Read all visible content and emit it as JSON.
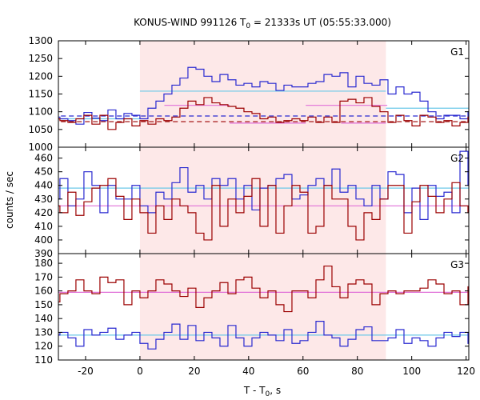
{
  "chart_data": {
    "type": "line",
    "title_main": "KONUS-WIND 991126 T",
    "title_sub": "0",
    "title_rest": " = 21333s UT (05:55:33.000)",
    "xlabel_main": "T - T",
    "xlabel_sub": "0",
    "xlabel_rest": ", s",
    "ylabel": "counts / sec",
    "xlim": [
      -30,
      121
    ],
    "x_ticks": [
      -20,
      0,
      20,
      40,
      60,
      80,
      100,
      120
    ],
    "highlight_interval": [
      0,
      90.5
    ],
    "bin_width": 2.944,
    "bin_start": -32.384,
    "colors": {
      "blue": "#2a2ad0",
      "red": "#9b0000",
      "cyan": "#6cc8e8",
      "pink": "#e070d8",
      "highlight": "#fde8e8"
    },
    "panels": [
      {
        "label": "G1",
        "ylim": [
          1000,
          1300
        ],
        "y_ticks": [
          1000,
          1050,
          1100,
          1150,
          1200,
          1250,
          1300
        ],
        "series": [
          {
            "color_key": "blue",
            "values": [
              1085,
              1080,
              1075,
              1065,
              1098,
              1082,
              1075,
              1105,
              1080,
              1095,
              1090,
              1080,
              1110,
              1130,
              1150,
              1175,
              1195,
              1225,
              1220,
              1200,
              1185,
              1205,
              1190,
              1175,
              1180,
              1170,
              1185,
              1180,
              1160,
              1175,
              1170,
              1170,
              1180,
              1185,
              1205,
              1200,
              1210,
              1170,
              1200,
              1180,
              1175,
              1190,
              1150,
              1170,
              1150,
              1155,
              1130,
              1100,
              1080,
              1090,
              1090,
              1080,
              1100,
              1110,
              1105,
              1115,
              1100,
              1100
            ]
          },
          {
            "color_key": "red",
            "values": [
              1080,
              1075,
              1070,
              1080,
              1090,
              1065,
              1090,
              1050,
              1070,
              1080,
              1060,
              1075,
              1065,
              1080,
              1075,
              1085,
              1110,
              1130,
              1120,
              1140,
              1125,
              1120,
              1115,
              1110,
              1100,
              1095,
              1080,
              1085,
              1070,
              1075,
              1080,
              1075,
              1085,
              1070,
              1085,
              1070,
              1130,
              1135,
              1125,
              1140,
              1115,
              1100,
              1070,
              1090,
              1075,
              1060,
              1090,
              1085,
              1070,
              1075,
              1060,
              1070,
              1085,
              1060,
              1050,
              1080,
              1085,
              1075
            ]
          }
        ],
        "levels": [
          {
            "color_key": "cyan",
            "dashed": false,
            "segments": [
              [
                -32,
                0,
                1080
              ],
              [
                0,
                90.5,
                1158
              ],
              [
                90.5,
                121,
                1110
              ]
            ]
          },
          {
            "color_key": "pink",
            "dashed": false,
            "segments": [
              [
                9,
                33,
                1118
              ],
              [
                33,
                61,
                1068
              ],
              [
                61,
                91,
                1118
              ],
              [
                74,
                90.5,
                1068
              ]
            ]
          },
          {
            "color_key": "blue",
            "dashed": true,
            "segments": [
              [
                -32,
                121,
                1088
              ]
            ]
          },
          {
            "color_key": "red",
            "dashed": true,
            "segments": [
              [
                -32,
                121,
                1072
              ]
            ]
          }
        ]
      },
      {
        "label": "G2",
        "ylim": [
          390,
          468
        ],
        "y_ticks": [
          390,
          400,
          410,
          420,
          430,
          440,
          450,
          460
        ],
        "series": [
          {
            "color_key": "blue",
            "values": [
              430,
              445,
              425,
              430,
              450,
              440,
              420,
              440,
              430,
              430,
              440,
              425,
              420,
              435,
              430,
              442,
              453,
              435,
              440,
              430,
              445,
              440,
              445,
              430,
              440,
              422,
              438,
              440,
              445,
              448,
              430,
              433,
              440,
              445,
              440,
              452,
              435,
              440,
              430,
              425,
              440,
              430,
              450,
              448,
              420,
              438,
              415,
              440,
              432,
              435,
              420,
              465,
              440,
              415,
              425,
              442,
              455,
              440
            ]
          },
          {
            "color_key": "red",
            "values": [
              425,
              420,
              435,
              418,
              428,
              438,
              440,
              445,
              432,
              415,
              430,
              420,
              405,
              425,
              415,
              430,
              425,
              420,
              405,
              400,
              440,
              410,
              430,
              420,
              432,
              445,
              410,
              440,
              405,
              425,
              440,
              435,
              405,
              410,
              440,
              430,
              430,
              410,
              400,
              420,
              415,
              430,
              440,
              440,
              405,
              428,
              440,
              432,
              420,
              430,
              442,
              425,
              420,
              410,
              405,
              410,
              440,
              430
            ]
          }
        ],
        "levels": [
          {
            "color_key": "cyan",
            "dashed": false,
            "segments": [
              [
                -32,
                121,
                438
              ]
            ]
          },
          {
            "color_key": "pink",
            "dashed": false,
            "segments": [
              [
                -32,
                121,
                425
              ]
            ]
          }
        ]
      },
      {
        "label": "G3",
        "ylim": [
          110,
          187
        ],
        "y_ticks": [
          110,
          120,
          130,
          140,
          150,
          160,
          170,
          180
        ],
        "series": [
          {
            "color_key": "blue",
            "values": [
              128,
              130,
              126,
              120,
              132,
              128,
              130,
              133,
              125,
              128,
              130,
              122,
              118,
              125,
              130,
              136,
              125,
              135,
              124,
              130,
              126,
              120,
              135,
              126,
              120,
              126,
              130,
              128,
              124,
              132,
              122,
              124,
              130,
              138,
              128,
              126,
              120,
              125,
              132,
              134,
              124,
              124,
              126,
              132,
              122,
              126,
              124,
              120,
              126,
              130,
              127,
              130,
              122,
              126,
              124,
              130,
              142,
              128
            ]
          },
          {
            "color_key": "red",
            "values": [
              152,
              158,
              160,
              168,
              160,
              158,
              170,
              166,
              168,
              150,
              160,
              155,
              160,
              168,
              165,
              160,
              156,
              162,
              148,
              155,
              160,
              166,
              158,
              168,
              170,
              162,
              155,
              160,
              150,
              145,
              160,
              160,
              155,
              168,
              178,
              163,
              155,
              165,
              168,
              165,
              150,
              158,
              160,
              158,
              160,
              160,
              162,
              168,
              165,
              158,
              160,
              150,
              163,
              160,
              170,
              168,
              165,
              160
            ]
          }
        ],
        "levels": [
          {
            "color_key": "cyan",
            "dashed": false,
            "segments": [
              [
                -32,
                121,
                128
              ]
            ]
          },
          {
            "color_key": "pink",
            "dashed": false,
            "segments": [
              [
                -32,
                121,
                159
              ]
            ]
          }
        ]
      }
    ]
  }
}
